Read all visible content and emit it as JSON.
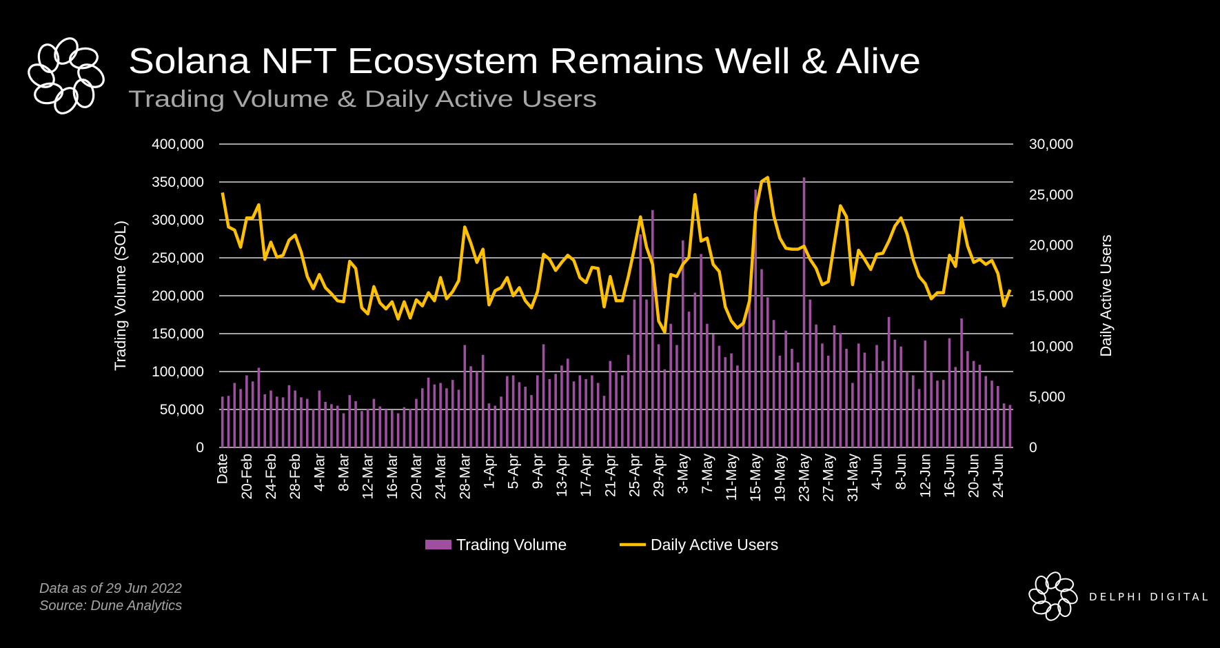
{
  "header": {
    "title": "Solana NFT Ecosystem Remains Well & Alive",
    "subtitle": "Trading Volume & Daily Active Users"
  },
  "footer": {
    "data_note": "Data as of 29 Jun 2022",
    "source": "Source: Dune Analytics",
    "brand": "DELPHI DIGITAL"
  },
  "colors": {
    "background": "#000000",
    "bars": "#9e4f9f",
    "line": "#ffc000",
    "grid": "#d9d9d9",
    "title": "#ffffff",
    "subtitle": "#a6a6a6"
  },
  "chart_data": {
    "type": "bar+line",
    "title": "Solana NFT Ecosystem Remains Well & Alive",
    "subtitle": "Trading Volume & Daily Active Users",
    "ylabel_left": "Trading Volume (SOL)",
    "ylabel_right": "Daily Active Users",
    "ylim_left": [
      0,
      400000
    ],
    "ylim_right": [
      0,
      30000
    ],
    "yticks_left": [
      "0",
      "50,000",
      "100,000",
      "150,000",
      "200,000",
      "250,000",
      "300,000",
      "350,000",
      "400,000"
    ],
    "yticks_right": [
      "0",
      "5,000",
      "10,000",
      "15,000",
      "20,000",
      "25,000",
      "30,000"
    ],
    "x_tick_labels": [
      "Date",
      "20-Feb",
      "24-Feb",
      "28-Feb",
      "4-Mar",
      "8-Mar",
      "12-Mar",
      "16-Mar",
      "20-Mar",
      "24-Mar",
      "28-Mar",
      "1-Apr",
      "5-Apr",
      "9-Apr",
      "13-Apr",
      "17-Apr",
      "21-Apr",
      "25-Apr",
      "29-Apr",
      "3-May",
      "7-May",
      "11-May",
      "15-May",
      "19-May",
      "23-May",
      "27-May",
      "31-May",
      "4-Jun",
      "8-Jun",
      "12-Jun",
      "16-Jun",
      "20-Jun",
      "24-Jun"
    ],
    "x_tick_every": 4,
    "grid": true,
    "legend_position": "bottom",
    "series": [
      {
        "name": "Trading Volume",
        "type": "bar",
        "axis": "left",
        "values": [
          67000,
          68000,
          85000,
          77000,
          95000,
          87000,
          105000,
          70000,
          75000,
          67000,
          66000,
          82000,
          75000,
          66000,
          64000,
          51000,
          75000,
          60000,
          57000,
          55000,
          45000,
          69000,
          61000,
          48000,
          51000,
          64000,
          54000,
          50000,
          49000,
          45000,
          53000,
          51000,
          64000,
          78000,
          92000,
          83000,
          85000,
          78000,
          89000,
          76000,
          135000,
          107000,
          100000,
          122000,
          58000,
          55000,
          67000,
          94000,
          95000,
          86000,
          80000,
          69000,
          95000,
          136000,
          90000,
          97000,
          108000,
          117000,
          87000,
          95000,
          90000,
          95000,
          85000,
          68000,
          114000,
          101000,
          95000,
          122000,
          195000,
          281000,
          195000,
          313000,
          136000,
          103000,
          163000,
          135000,
          273000,
          179000,
          204000,
          255000,
          163000,
          149000,
          134000,
          119000,
          124000,
          108000,
          163000,
          195000,
          340000,
          235000,
          198000,
          168000,
          121000,
          154000,
          130000,
          112000,
          356000,
          195000,
          162000,
          137000,
          121000,
          161000,
          151000,
          130000,
          85000,
          137000,
          125000,
          98000,
          135000,
          114000,
          172000,
          142000,
          133000,
          100000,
          95000,
          77000,
          141000,
          100000,
          88000,
          89000,
          144000,
          106000,
          170000,
          127000,
          114000,
          109000,
          94000,
          88000,
          81000,
          58000,
          56000
        ]
      },
      {
        "name": "Daily Active Users",
        "type": "line",
        "axis": "right",
        "values": [
          25200,
          21800,
          21500,
          19800,
          22700,
          22700,
          24000,
          18600,
          20300,
          18800,
          19000,
          20500,
          21000,
          19300,
          16900,
          15700,
          17100,
          15800,
          15200,
          14500,
          14400,
          18400,
          17700,
          13800,
          13200,
          15900,
          14300,
          13700,
          14400,
          12700,
          14400,
          12800,
          14600,
          14000,
          15300,
          14500,
          16800,
          14700,
          15400,
          16500,
          21800,
          20200,
          18300,
          19600,
          14100,
          15500,
          15800,
          16800,
          15000,
          15800,
          14500,
          13800,
          15400,
          19100,
          18600,
          17500,
          18300,
          19000,
          18500,
          16800,
          16300,
          17800,
          17700,
          13900,
          16900,
          14500,
          14500,
          16900,
          19700,
          22800,
          19800,
          18100,
          12500,
          11400,
          17100,
          16900,
          18100,
          18800,
          25000,
          20400,
          20700,
          18100,
          17400,
          13900,
          12500,
          11800,
          12300,
          14500,
          23300,
          26300,
          26700,
          22900,
          20700,
          19700,
          19600,
          19600,
          19900,
          18600,
          17700,
          16100,
          16400,
          20200,
          23900,
          22800,
          16100,
          19500,
          18600,
          17600,
          19100,
          19200,
          20400,
          21900,
          22700,
          21100,
          18600,
          16900,
          16200,
          14700,
          15300,
          15300,
          19000,
          17900,
          22700,
          19900,
          18300,
          18600,
          18100,
          18500,
          17200,
          14000,
          15600
        ]
      }
    ]
  }
}
